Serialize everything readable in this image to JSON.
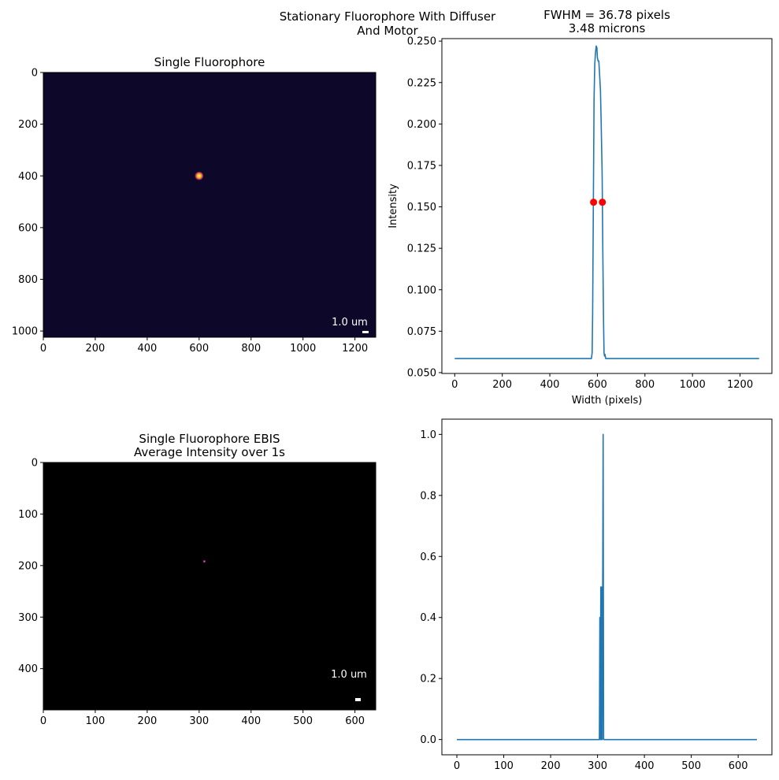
{
  "suptitle": [
    "Stationary Fluorophore With Diffuser",
    "And Motor"
  ],
  "colors": {
    "line": "#1f77b4",
    "marker": "#ff0000",
    "image_bg_top": "#0d0829",
    "image_bg_bottom": "#000000",
    "scalebar": "#ffffff"
  },
  "chart_data": [
    {
      "type": "heatmap",
      "panel": "top-left",
      "title": [
        "Single Fluorophore"
      ],
      "xlim": [
        0,
        1280
      ],
      "ylim": [
        1024,
        0
      ],
      "xticks": [
        0,
        200,
        400,
        600,
        800,
        1000,
        1200
      ],
      "yticks": [
        0,
        200,
        400,
        600,
        800,
        1000
      ],
      "colormap": "inferno",
      "spots": [
        {
          "x": 600,
          "y": 400,
          "radius": 18,
          "intensity": 1.0
        }
      ],
      "scalebar_label": "1.0 um"
    },
    {
      "type": "line",
      "panel": "top-right",
      "title": [
        "FWHM = 36.78 pixels",
        "3.48 microns"
      ],
      "xlabel": "Width (pixels)",
      "ylabel": "Intensity",
      "xlim": [
        -54,
        1334
      ],
      "ylim": [
        0.0495,
        0.2515
      ],
      "xticks": [
        0,
        200,
        400,
        600,
        800,
        1000,
        1200
      ],
      "yticks": [
        0.05,
        0.075,
        0.1,
        0.125,
        0.15,
        0.175,
        0.2,
        0.225,
        0.25
      ],
      "ytick_labels": [
        "0.050",
        "0.075",
        "0.100",
        "0.125",
        "0.150",
        "0.175",
        "0.200",
        "0.225",
        "0.250"
      ],
      "series": [
        {
          "x": [
            0,
            575,
            578,
            580,
            583,
            586,
            589,
            592,
            595,
            598,
            600,
            603,
            606,
            610,
            613,
            616,
            620,
            623,
            626,
            628,
            630,
            632,
            635,
            1280
          ],
          "y": [
            0.0585,
            0.0585,
            0.062,
            0.085,
            0.15,
            0.215,
            0.236,
            0.243,
            0.247,
            0.246,
            0.24,
            0.238,
            0.238,
            0.228,
            0.22,
            0.2,
            0.17,
            0.12,
            0.08,
            0.062,
            0.06,
            0.061,
            0.0585,
            0.0585
          ]
        }
      ],
      "markers": [
        {
          "x": 584,
          "y": 0.1528
        },
        {
          "x": 621,
          "y": 0.1528
        }
      ]
    },
    {
      "type": "heatmap",
      "panel": "bottom-left",
      "title": [
        "Single Fluorophore EBIS",
        "Average Intensity over 1s"
      ],
      "xlim": [
        0,
        640
      ],
      "ylim": [
        480,
        0
      ],
      "xticks": [
        0,
        100,
        200,
        300,
        400,
        500,
        600
      ],
      "yticks": [
        0,
        100,
        200,
        300,
        400
      ],
      "colormap": "magma",
      "spots": [
        {
          "x": 310,
          "y": 192,
          "radius": 3,
          "intensity": 0.9
        }
      ],
      "scalebar_label": "1.0 um"
    },
    {
      "type": "line",
      "panel": "bottom-right",
      "title": [],
      "xlabel": "",
      "ylabel": "",
      "xlim": [
        -32,
        672
      ],
      "ylim": [
        -0.05,
        1.05
      ],
      "xticks": [
        0,
        100,
        200,
        300,
        400,
        500,
        600
      ],
      "yticks": [
        0.0,
        0.2,
        0.4,
        0.6,
        0.8,
        1.0
      ],
      "ytick_labels": [
        "0.0",
        "0.2",
        "0.4",
        "0.6",
        "0.8",
        "1.0"
      ],
      "series": [
        {
          "x": [
            0,
            303,
            304,
            305,
            306,
            307,
            308,
            309,
            310,
            311,
            312,
            313,
            314,
            640
          ],
          "y": [
            0,
            0,
            0.0,
            0.4,
            0.0,
            0.5,
            0.0,
            0.5,
            0.0,
            0.5,
            1.0,
            0.0,
            0,
            0
          ]
        }
      ],
      "markers": []
    }
  ]
}
